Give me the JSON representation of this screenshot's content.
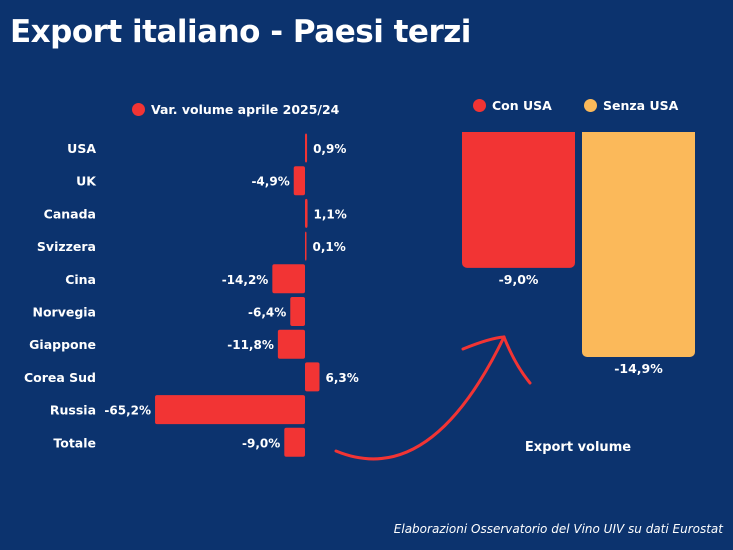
{
  "title": "Export italiano - Paesi terzi",
  "footnote": "Elaborazioni Osservatorio del Vino UIV su dati Eurostat",
  "colors": {
    "background": "#0c336e",
    "red": "#f23434",
    "yellow": "#fbb95a"
  },
  "chart_data": [
    {
      "type": "bar",
      "orientation": "horizontal",
      "legend": "Var. volume aprile 2025/24",
      "categories": [
        "USA",
        "UK",
        "Canada",
        "Svizzera",
        "Cina",
        "Norvegia",
        "Giappone",
        "Corea Sud",
        "Russia",
        "Totale"
      ],
      "values": [
        0.9,
        -4.9,
        1.1,
        0.1,
        -14.2,
        -6.4,
        -11.8,
        6.3,
        -65.2,
        -9.0
      ],
      "labels": [
        "0,9%",
        "-4,9%",
        "1,1%",
        "0,1%",
        "-14,2%",
        "-6,4%",
        "-11,8%",
        "6,3%",
        "-65,2%",
        "-9,0%"
      ],
      "color": "#f23434"
    },
    {
      "type": "bar",
      "xlabel": "Export volume",
      "series": [
        {
          "name": "Con USA",
          "value": -9.0,
          "label": "-9,0%",
          "color": "#f23434"
        },
        {
          "name": "Senza USA",
          "value": -14.9,
          "label": "-14,9%",
          "color": "#fbb95a"
        }
      ]
    }
  ]
}
